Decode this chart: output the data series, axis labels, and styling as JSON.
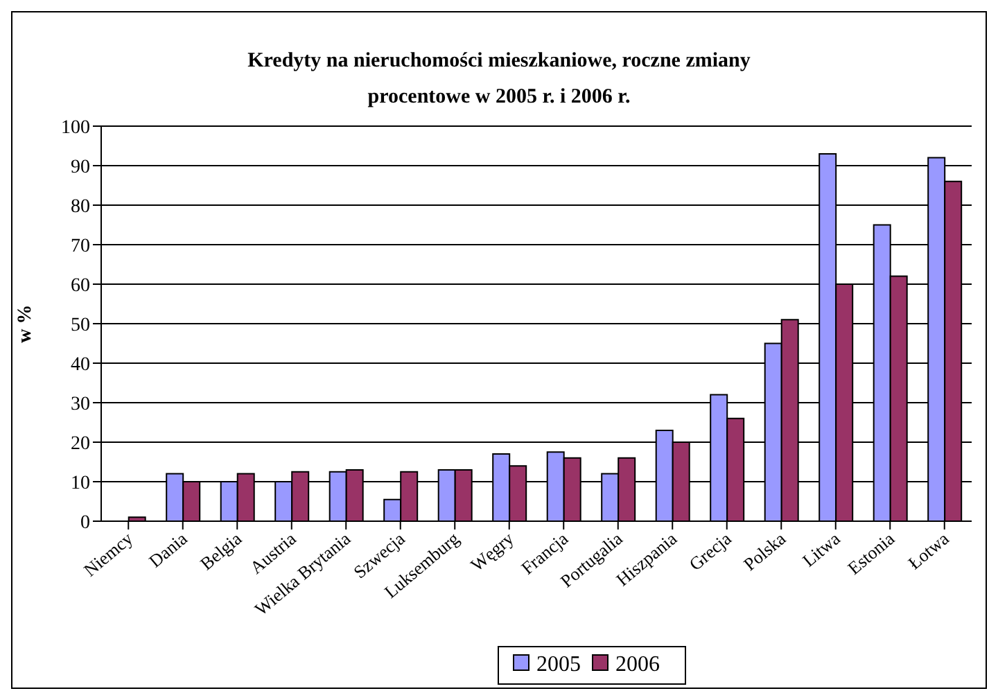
{
  "chart_data": {
    "type": "bar",
    "title": "Kredyty na nieruchomości mieszkaniowe, roczne zmiany procentowe w 2005 r. i 2006 r.",
    "ylabel": "w %",
    "categories": [
      "Niemcy",
      "Dania",
      "Belgia",
      "Austria",
      "Wielka Brytania",
      "Szwecja",
      "Luksemburg",
      "Węgry",
      "Francja",
      "Portugalia",
      "Hiszpania",
      "Grecja",
      "Polska",
      "Litwa",
      "Estonia",
      "Łotwa"
    ],
    "series": [
      {
        "name": "2005",
        "color": "#9999ff",
        "values": [
          null,
          12,
          10,
          10,
          12.5,
          5.5,
          13,
          17,
          17.5,
          12,
          23,
          32,
          45,
          93,
          75,
          92
        ]
      },
      {
        "name": "2006",
        "color": "#993366",
        "values": [
          1,
          10,
          12,
          12.5,
          13,
          12.5,
          13,
          14,
          16,
          16,
          20,
          26,
          51,
          60,
          62,
          86
        ]
      }
    ],
    "ylim": [
      0,
      100
    ],
    "yticks": [
      0,
      10,
      20,
      30,
      40,
      50,
      60,
      70,
      80,
      90,
      100
    ],
    "grid": "y",
    "legend": "bottom"
  }
}
